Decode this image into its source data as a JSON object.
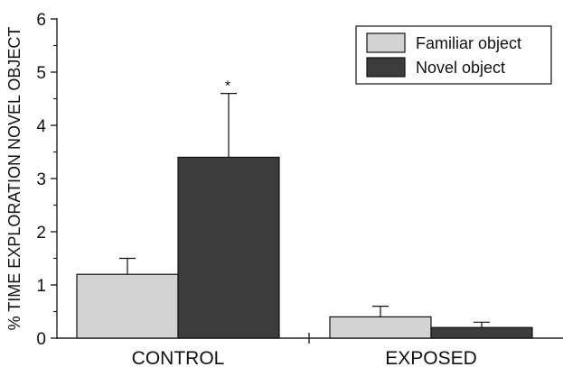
{
  "chart_data": {
    "type": "bar",
    "categories": [
      "CONTROL",
      "EXPOSED"
    ],
    "series": [
      {
        "name": "Familiar object",
        "values": [
          1.2,
          0.4
        ],
        "errors": [
          0.3,
          0.2
        ],
        "color": "#d3d3d3"
      },
      {
        "name": "Novel object",
        "values": [
          3.4,
          0.2
        ],
        "errors": [
          1.2,
          0.1
        ],
        "color": "#3c3c3c"
      }
    ],
    "ylabel": "% TIME EXPLORATION NOVEL OBJECT",
    "ylim": [
      0,
      6
    ],
    "yticks": [
      "0",
      "1",
      "2",
      "3",
      "4",
      "5",
      "6"
    ],
    "annotations": [
      {
        "text": "*",
        "category": 0,
        "series": 1
      }
    ],
    "legend": "top-right",
    "grid": false
  }
}
